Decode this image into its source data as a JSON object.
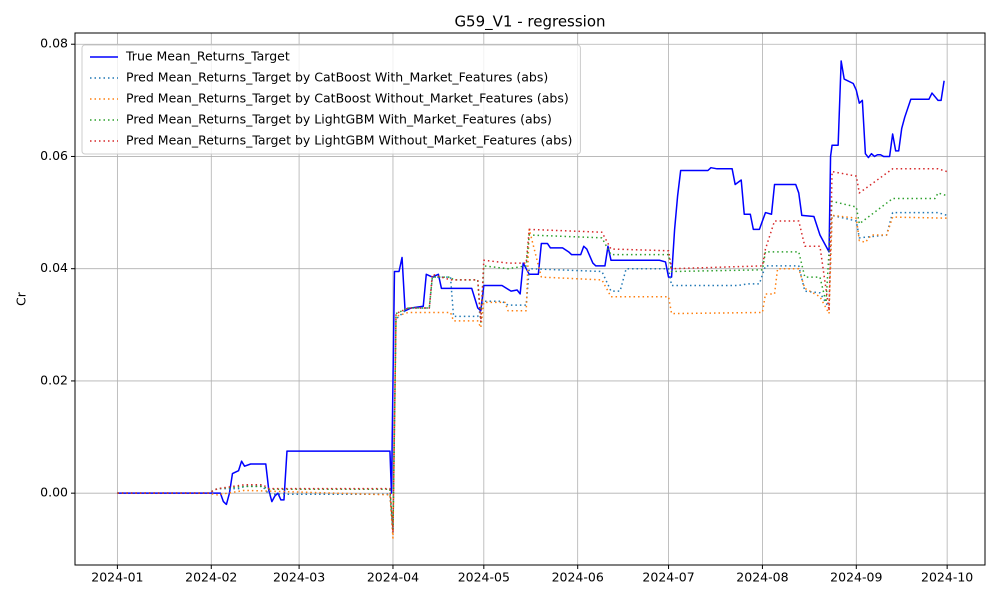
{
  "chart_data": {
    "type": "line",
    "title": "G59_V1 - regression",
    "ylabel": "Cr",
    "grid": true,
    "legend": "upper left",
    "xlim": [
      -14,
      286.5
    ],
    "ylim": [
      -0.0128,
      0.082
    ],
    "xticks": [
      {
        "value": 0,
        "label": "2024-01"
      },
      {
        "value": 31,
        "label": "2024-02"
      },
      {
        "value": 60,
        "label": "2024-03"
      },
      {
        "value": 91,
        "label": "2024-04"
      },
      {
        "value": 121,
        "label": "2024-05"
      },
      {
        "value": 152,
        "label": "2024-06"
      },
      {
        "value": 182,
        "label": "2024-07"
      },
      {
        "value": 213,
        "label": "2024-08"
      },
      {
        "value": 244,
        "label": "2024-09"
      },
      {
        "value": 274,
        "label": "2024-10"
      }
    ],
    "yticks": [
      {
        "value": 0,
        "label": "0.00"
      },
      {
        "value": 0.02,
        "label": "0.02"
      },
      {
        "value": 0.04,
        "label": "0.04"
      },
      {
        "value": 0.06,
        "label": "0.06"
      },
      {
        "value": 0.08,
        "label": "0.08"
      }
    ],
    "series": [
      {
        "name": "True Mean_Returns_Target",
        "color": "#0000ff",
        "dash": "solid",
        "x": [
          0,
          34,
          35,
          36,
          37,
          38,
          40,
          41,
          42,
          44,
          49,
          50,
          51,
          52,
          53,
          54,
          55,
          56,
          90,
          90.5,
          91.5,
          93,
          94,
          95,
          97,
          101,
          102,
          104,
          106,
          107,
          117,
          119,
          120,
          121,
          127,
          130,
          132,
          133,
          134,
          136,
          139,
          140,
          142,
          143,
          147,
          149,
          150,
          153,
          154,
          155,
          157,
          158,
          161,
          162,
          163,
          179,
          181,
          182,
          183,
          184,
          185,
          186,
          195,
          196,
          198,
          203,
          204,
          206,
          207,
          209,
          210,
          212,
          214,
          216,
          217,
          224,
          225,
          226,
          230,
          232,
          234,
          235,
          235.5,
          236,
          238,
          239,
          240,
          243,
          244,
          245,
          246,
          247,
          248,
          249,
          250,
          251,
          252,
          253,
          255,
          256,
          257,
          258,
          259,
          260,
          262,
          268,
          269,
          271,
          272,
          273
        ],
        "values": [
          0,
          0,
          -0.0015,
          -0.002,
          0,
          0.0035,
          0.004,
          0.0057,
          0.0048,
          0.0052,
          0.0052,
          0.0005,
          -0.0015,
          -0.0005,
          0,
          -0.0012,
          -0.0012,
          0.0075,
          0.0075,
          0,
          0.0395,
          0.0395,
          0.042,
          0.0325,
          0.033,
          0.0333,
          0.039,
          0.0385,
          0.039,
          0.0365,
          0.0365,
          0.033,
          0.0325,
          0.037,
          0.037,
          0.036,
          0.0362,
          0.0355,
          0.041,
          0.039,
          0.039,
          0.0445,
          0.0445,
          0.0437,
          0.0437,
          0.043,
          0.0425,
          0.0425,
          0.044,
          0.0435,
          0.041,
          0.0405,
          0.0405,
          0.044,
          0.0415,
          0.0415,
          0.0412,
          0.0385,
          0.0385,
          0.047,
          0.053,
          0.0575,
          0.0575,
          0.058,
          0.0578,
          0.0578,
          0.055,
          0.0558,
          0.0497,
          0.0497,
          0.047,
          0.047,
          0.05,
          0.0497,
          0.055,
          0.055,
          0.0535,
          0.0495,
          0.0493,
          0.046,
          0.044,
          0.043,
          0.06,
          0.062,
          0.062,
          0.077,
          0.0738,
          0.073,
          0.0718,
          0.0695,
          0.07,
          0.0605,
          0.0598,
          0.0605,
          0.06,
          0.0603,
          0.0603,
          0.06,
          0.06,
          0.064,
          0.061,
          0.061,
          0.065,
          0.067,
          0.0702,
          0.0702,
          0.0713,
          0.07,
          0.07,
          0.0735
        ]
      },
      {
        "name": "Pred Mean_Returns_Target by CatBoost With_Market_Features (abs)",
        "color": "#1f77b4",
        "dash": "dotted",
        "x": [
          0,
          30,
          33,
          40,
          42,
          48,
          50,
          90,
          91,
          92,
          96,
          103,
          104,
          110,
          111,
          119,
          121,
          127,
          129,
          135,
          136,
          160,
          163,
          166,
          168,
          182,
          183,
          205,
          208,
          212,
          214,
          225,
          227,
          232,
          235,
          236,
          244,
          245,
          254,
          256,
          271,
          274
        ],
        "values": [
          0,
          0,
          0.0008,
          0.0008,
          0.0012,
          0.0012,
          -0.0002,
          -0.0002,
          -0.007,
          0.031,
          0.033,
          0.033,
          0.0385,
          0.0385,
          0.0315,
          0.0315,
          0.0342,
          0.0342,
          0.0335,
          0.0335,
          0.04,
          0.0395,
          0.036,
          0.036,
          0.04,
          0.04,
          0.037,
          0.037,
          0.0373,
          0.0373,
          0.0405,
          0.0405,
          0.036,
          0.0357,
          0.033,
          0.0495,
          0.0485,
          0.0455,
          0.046,
          0.05,
          0.05,
          0.0495
        ]
      },
      {
        "name": "Pred Mean_Returns_Target by CatBoost Without_Market_Features (abs)",
        "color": "#ff7f0e",
        "dash": "dotted",
        "x": [
          0,
          30,
          33,
          42,
          90,
          91,
          92,
          96,
          110,
          111,
          119,
          120,
          121,
          128,
          129,
          135,
          136,
          140,
          160,
          163,
          182,
          183,
          213,
          214,
          217,
          218,
          225,
          227,
          232,
          235,
          236,
          244,
          245,
          247,
          249,
          254,
          256,
          274
        ],
        "values": [
          0,
          0,
          -0.0003,
          0.0005,
          -0.0003,
          -0.008,
          0.0315,
          0.0322,
          0.0322,
          0.0307,
          0.0307,
          0.0295,
          0.034,
          0.034,
          0.0325,
          0.0325,
          0.047,
          0.0385,
          0.038,
          0.035,
          0.035,
          0.032,
          0.0322,
          0.0355,
          0.0355,
          0.04,
          0.04,
          0.0365,
          0.035,
          0.032,
          0.0495,
          0.049,
          0.045,
          0.0447,
          0.046,
          0.046,
          0.0492,
          0.049
        ]
      },
      {
        "name": "Pred Mean_Returns_Target by LightGBM With_Market_Features (abs)",
        "color": "#2ca02c",
        "dash": "dotted",
        "x": [
          0,
          30,
          33,
          42,
          48,
          50,
          90,
          91,
          92,
          96,
          103,
          104,
          110,
          111,
          119,
          120,
          121,
          129,
          135,
          136,
          160,
          163,
          182,
          183,
          213,
          214,
          225,
          227,
          232,
          234,
          236,
          244,
          245,
          256,
          270,
          271,
          274
        ],
        "values": [
          0,
          0,
          0.0008,
          0.0012,
          0.0012,
          0.0007,
          0.0007,
          -0.0065,
          0.032,
          0.033,
          0.033,
          0.0385,
          0.0385,
          0.038,
          0.038,
          0.0305,
          0.0405,
          0.04,
          0.0405,
          0.046,
          0.0455,
          0.0425,
          0.0425,
          0.0395,
          0.0398,
          0.043,
          0.043,
          0.0385,
          0.0385,
          0.034,
          0.052,
          0.051,
          0.048,
          0.0525,
          0.0525,
          0.0535,
          0.053
        ]
      },
      {
        "name": "Pred Mean_Returns_Target by LightGBM Without_Market_Features (abs)",
        "color": "#d62728",
        "dash": "dotted",
        "x": [
          0,
          30,
          33,
          42,
          48,
          50,
          90,
          91,
          92,
          96,
          103,
          104,
          110,
          119,
          120,
          121,
          129,
          135,
          136,
          160,
          163,
          182,
          183,
          213,
          214,
          217,
          225,
          227,
          232,
          235,
          236,
          244,
          245,
          256,
          271,
          274
        ],
        "values": [
          0,
          0,
          0.0008,
          0.0015,
          0.0015,
          0.0008,
          0.0008,
          -0.007,
          0.032,
          0.033,
          0.033,
          0.039,
          0.038,
          0.038,
          0.0305,
          0.0415,
          0.041,
          0.041,
          0.047,
          0.0465,
          0.0435,
          0.0432,
          0.04,
          0.0405,
          0.0435,
          0.0485,
          0.0485,
          0.044,
          0.044,
          0.0325,
          0.0573,
          0.0565,
          0.0535,
          0.0578,
          0.0578,
          0.0573
        ]
      }
    ]
  }
}
